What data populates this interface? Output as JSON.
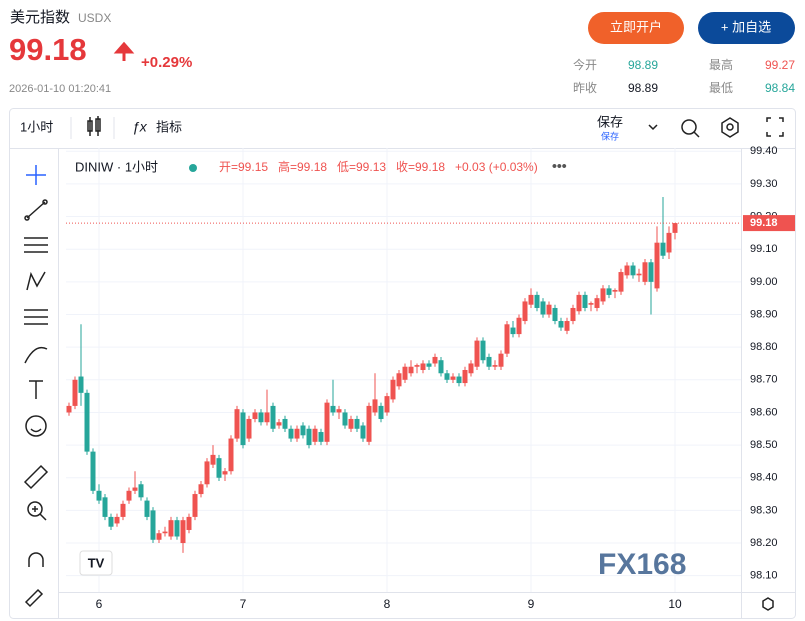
{
  "header": {
    "title": "美元指数",
    "symbol": "USDX",
    "price": "99.18",
    "change": "+0.29%",
    "time": "2026-01-10 01:20:41",
    "open_account": "立即开户",
    "add_watch": "+ 加自选",
    "stats": [
      {
        "label": "今开",
        "value": "98.89"
      },
      {
        "label": "最高",
        "value": "99.27"
      },
      {
        "label": "昨收",
        "value": "98.89"
      },
      {
        "label": "最低",
        "value": "98.84"
      }
    ]
  },
  "toolbar": {
    "interval": "1小时",
    "indicators": "指标",
    "save": "保存",
    "save_sub": "保存"
  },
  "legend": {
    "symbol": "DINIW · 1小时",
    "open": "开=99.15",
    "high": "高=99.18",
    "low": "低=99.13",
    "close": "收=99.18",
    "change": "+0.03 (+0.03%)"
  },
  "watermark": "FX168",
  "chart_data": {
    "type": "candlestick",
    "up_color": "#ef5350",
    "down_color": "#26a69a",
    "ohlc": [
      [
        98.6,
        98.63,
        98.59,
        98.62
      ],
      [
        98.62,
        98.71,
        98.61,
        98.7
      ],
      [
        98.71,
        98.87,
        98.62,
        98.66
      ],
      [
        98.66,
        98.67,
        98.47,
        98.48
      ],
      [
        98.48,
        98.49,
        98.35,
        98.36
      ],
      [
        98.36,
        98.38,
        98.32,
        98.33
      ],
      [
        98.34,
        98.35,
        98.27,
        98.28
      ],
      [
        98.28,
        98.29,
        98.24,
        98.25
      ],
      [
        98.26,
        98.29,
        98.25,
        98.28
      ],
      [
        98.28,
        98.33,
        98.27,
        98.32
      ],
      [
        98.33,
        98.37,
        98.32,
        98.36
      ],
      [
        98.36,
        98.42,
        98.35,
        98.37
      ],
      [
        98.38,
        98.39,
        98.33,
        98.34
      ],
      [
        98.33,
        98.34,
        98.27,
        98.28
      ],
      [
        98.3,
        98.31,
        98.2,
        98.21
      ],
      [
        98.21,
        98.24,
        98.2,
        98.23
      ],
      [
        98.23,
        98.25,
        98.22,
        98.235
      ],
      [
        98.22,
        98.28,
        98.21,
        98.27
      ],
      [
        98.27,
        98.28,
        98.21,
        98.22
      ],
      [
        98.2,
        98.28,
        98.17,
        98.27
      ],
      [
        98.24,
        98.29,
        98.23,
        98.28
      ],
      [
        98.28,
        98.36,
        98.27,
        98.35
      ],
      [
        98.35,
        98.39,
        98.34,
        98.38
      ],
      [
        98.38,
        98.46,
        98.37,
        98.45
      ],
      [
        98.44,
        98.5,
        98.43,
        98.47
      ],
      [
        98.46,
        98.47,
        98.39,
        98.4
      ],
      [
        98.41,
        98.43,
        98.39,
        98.42
      ],
      [
        98.42,
        98.53,
        98.41,
        98.52
      ],
      [
        98.52,
        98.62,
        98.51,
        98.61
      ],
      [
        98.6,
        98.61,
        98.49,
        98.5
      ],
      [
        98.52,
        98.59,
        98.51,
        98.58
      ],
      [
        98.58,
        98.61,
        98.57,
        98.6
      ],
      [
        98.6,
        98.61,
        98.56,
        98.57
      ],
      [
        98.57,
        98.67,
        98.56,
        98.6
      ],
      [
        98.62,
        98.63,
        98.54,
        98.55
      ],
      [
        98.56,
        98.58,
        98.55,
        98.57
      ],
      [
        98.58,
        98.59,
        98.54,
        98.55
      ],
      [
        98.55,
        98.56,
        98.51,
        98.52
      ],
      [
        98.52,
        98.56,
        98.51,
        98.55
      ],
      [
        98.56,
        98.57,
        98.52,
        98.53
      ],
      [
        98.55,
        98.56,
        98.49,
        98.5
      ],
      [
        98.51,
        98.56,
        98.5,
        98.55
      ],
      [
        98.54,
        98.55,
        98.5,
        98.51
      ],
      [
        98.51,
        98.64,
        98.5,
        98.63
      ],
      [
        98.62,
        98.7,
        98.59,
        98.6
      ],
      [
        98.6,
        98.62,
        98.58,
        98.61
      ],
      [
        98.6,
        98.61,
        98.55,
        98.56
      ],
      [
        98.55,
        98.59,
        98.54,
        98.58
      ],
      [
        98.58,
        98.59,
        98.54,
        98.55
      ],
      [
        98.56,
        98.57,
        98.51,
        98.52
      ],
      [
        98.51,
        98.63,
        98.5,
        98.62
      ],
      [
        98.6,
        98.72,
        98.59,
        98.64
      ],
      [
        98.62,
        98.63,
        98.57,
        98.58
      ],
      [
        98.6,
        98.66,
        98.59,
        98.65
      ],
      [
        98.64,
        98.71,
        98.63,
        98.7
      ],
      [
        98.68,
        98.73,
        98.67,
        98.72
      ],
      [
        98.7,
        98.75,
        98.69,
        98.74
      ],
      [
        98.72,
        98.76,
        98.71,
        98.74
      ],
      [
        98.74,
        98.75,
        98.72,
        98.745
      ],
      [
        98.73,
        98.76,
        98.72,
        98.75
      ],
      [
        98.75,
        98.76,
        98.73,
        98.74
      ],
      [
        98.75,
        98.78,
        98.74,
        98.77
      ],
      [
        98.76,
        98.77,
        98.71,
        98.72
      ],
      [
        98.72,
        98.73,
        98.69,
        98.7
      ],
      [
        98.7,
        98.72,
        98.69,
        98.71
      ],
      [
        98.71,
        98.72,
        98.68,
        98.69
      ],
      [
        98.69,
        98.74,
        98.68,
        98.73
      ],
      [
        98.72,
        98.76,
        98.71,
        98.75
      ],
      [
        98.74,
        98.83,
        98.73,
        98.82
      ],
      [
        98.82,
        98.83,
        98.75,
        98.76
      ],
      [
        98.77,
        98.78,
        98.73,
        98.74
      ],
      [
        98.74,
        98.76,
        98.73,
        98.745
      ],
      [
        98.74,
        98.79,
        98.73,
        98.78
      ],
      [
        98.78,
        98.88,
        98.77,
        98.87
      ],
      [
        98.86,
        98.88,
        98.83,
        98.84
      ],
      [
        98.84,
        98.9,
        98.83,
        98.89
      ],
      [
        98.88,
        98.95,
        98.87,
        98.94
      ],
      [
        98.93,
        98.98,
        98.92,
        98.96
      ],
      [
        98.96,
        98.97,
        98.91,
        98.92
      ],
      [
        98.94,
        98.95,
        98.89,
        98.9
      ],
      [
        98.9,
        98.94,
        98.89,
        98.93
      ],
      [
        98.92,
        98.93,
        98.87,
        98.88
      ],
      [
        98.88,
        98.89,
        98.85,
        98.86
      ],
      [
        98.85,
        98.89,
        98.84,
        98.88
      ],
      [
        98.88,
        98.93,
        98.87,
        98.92
      ],
      [
        98.91,
        98.97,
        98.9,
        98.96
      ],
      [
        98.96,
        98.97,
        98.91,
        98.92
      ],
      [
        98.93,
        98.94,
        98.91,
        98.935
      ],
      [
        98.92,
        98.96,
        98.91,
        98.95
      ],
      [
        98.94,
        98.99,
        98.93,
        98.98
      ],
      [
        98.98,
        98.99,
        98.95,
        98.96
      ],
      [
        98.97,
        98.98,
        98.95,
        98.975
      ],
      [
        98.97,
        99.04,
        98.96,
        99.03
      ],
      [
        99.02,
        99.06,
        99.01,
        99.05
      ],
      [
        99.05,
        99.06,
        99.01,
        99.02
      ],
      [
        99.02,
        99.04,
        99.0,
        99.025
      ],
      [
        99.0,
        99.07,
        98.99,
        99.06
      ],
      [
        99.06,
        99.07,
        98.9,
        99.0
      ],
      [
        98.98,
        99.17,
        98.97,
        99.12
      ],
      [
        99.12,
        99.26,
        99.07,
        99.08
      ],
      [
        99.09,
        99.17,
        99.07,
        99.15
      ],
      [
        99.15,
        99.18,
        99.13,
        99.18
      ]
    ],
    "xlim": [
      -0.5,
      112
    ],
    "xticks": [
      {
        "value": 5,
        "label": "6"
      },
      {
        "value": 29,
        "label": "7"
      },
      {
        "value": 53,
        "label": "8"
      },
      {
        "value": 77,
        "label": "9"
      },
      {
        "value": 101,
        "label": "10"
      }
    ],
    "ylim": [
      98.05,
      99.41
    ],
    "yticks": [
      {
        "value": 98.1,
        "label": "98.10"
      },
      {
        "value": 98.2,
        "label": "98.20"
      },
      {
        "value": 98.3,
        "label": "98.30"
      },
      {
        "value": 98.4,
        "label": "98.40"
      },
      {
        "value": 98.5,
        "label": "98.50"
      },
      {
        "value": 98.6,
        "label": "98.60"
      },
      {
        "value": 98.7,
        "label": "98.70"
      },
      {
        "value": 98.8,
        "label": "98.80"
      },
      {
        "value": 98.9,
        "label": "98.90"
      },
      {
        "value": 99.0,
        "label": "99.00"
      },
      {
        "value": 99.1,
        "label": "99.10"
      },
      {
        "value": 99.2,
        "label": "99.20"
      },
      {
        "value": 99.3,
        "label": "99.30"
      },
      {
        "value": 99.4,
        "label": "99.40"
      }
    ],
    "last_price": 99.18,
    "grid": true
  }
}
